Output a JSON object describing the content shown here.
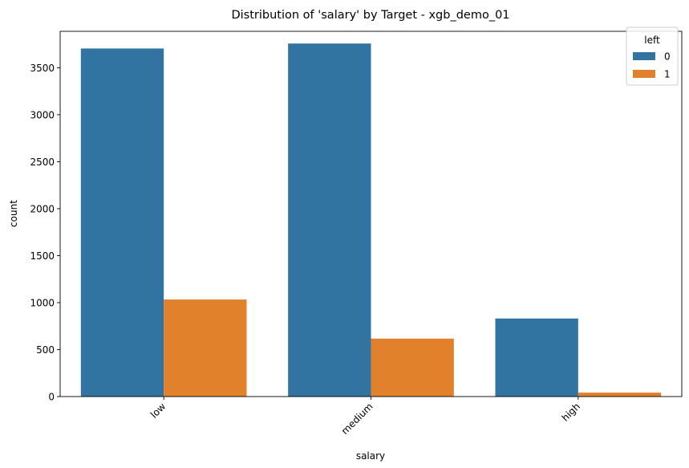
{
  "chart_data": {
    "type": "bar",
    "title": "Distribution of 'salary' by Target - xgb_demo_01",
    "xlabel": "salary",
    "ylabel": "count",
    "categories": [
      "low",
      "medium",
      "high"
    ],
    "series": [
      {
        "name": "0",
        "color": "#3274a1",
        "values": [
          3705,
          3758,
          831
        ]
      },
      {
        "name": "1",
        "color": "#e1812c",
        "values": [
          1033,
          617,
          42
        ]
      }
    ],
    "ylim": [
      0,
      3888
    ],
    "yticks": [
      0,
      500,
      1000,
      1500,
      2000,
      2500,
      3000,
      3500
    ],
    "legend": {
      "title": "left",
      "placement": "top-right"
    },
    "grid": false
  }
}
